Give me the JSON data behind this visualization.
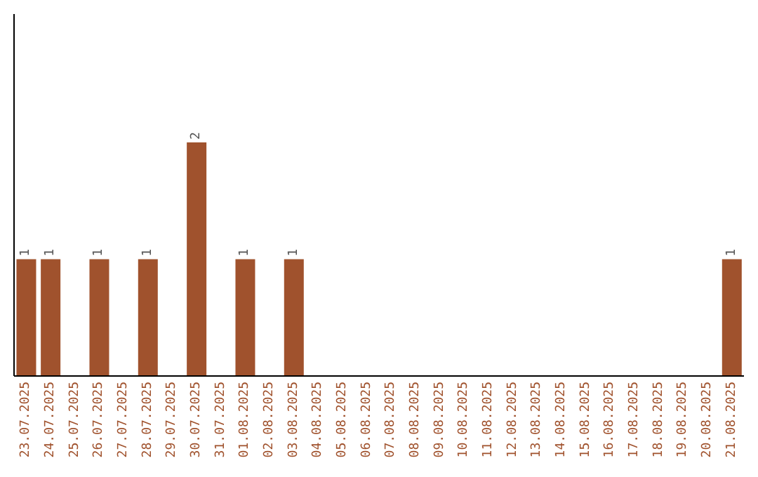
{
  "chart_data": {
    "type": "bar",
    "categories": [
      "23.07.2025",
      "24.07.2025",
      "25.07.2025",
      "26.07.2025",
      "27.07.2025",
      "28.07.2025",
      "29.07.2025",
      "30.07.2025",
      "31.07.2025",
      "01.08.2025",
      "02.08.2025",
      "03.08.2025",
      "04.08.2025",
      "05.08.2025",
      "06.08.2025",
      "07.08.2025",
      "08.08.2025",
      "09.08.2025",
      "10.08.2025",
      "11.08.2025",
      "12.08.2025",
      "13.08.2025",
      "14.08.2025",
      "15.08.2025",
      "16.08.2025",
      "17.08.2025",
      "18.08.2025",
      "19.08.2025",
      "20.08.2025",
      "21.08.2025"
    ],
    "values": [
      1,
      1,
      0,
      1,
      0,
      1,
      0,
      2,
      0,
      1,
      0,
      1,
      0,
      0,
      0,
      0,
      0,
      0,
      0,
      0,
      0,
      0,
      0,
      0,
      0,
      0,
      0,
      0,
      0,
      1
    ],
    "value_labels": [
      "1",
      "1",
      null,
      "1",
      null,
      "1",
      null,
      "2",
      null,
      "1",
      null,
      "1",
      null,
      null,
      null,
      null,
      null,
      null,
      null,
      null,
      null,
      null,
      null,
      null,
      null,
      null,
      null,
      null,
      null,
      "1"
    ],
    "color": "#a0522d",
    "ylim": [
      0,
      3.1
    ],
    "grid": false,
    "legend": false
  }
}
